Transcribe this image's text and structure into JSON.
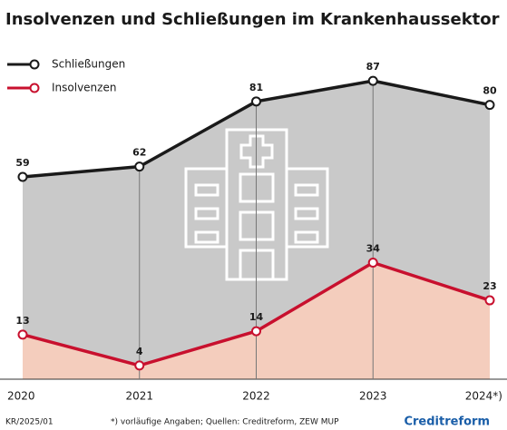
{
  "chart_data": {
    "type": "line",
    "title": "Insolvenzen und Schließungen im Krankenhaussektor",
    "categories": [
      "2020",
      "2021",
      "2022",
      "2023",
      "2024*)"
    ],
    "series": [
      {
        "name": "Schließungen",
        "color": "#1a1a1a",
        "area_color": "#c9c9c9",
        "values": [
          59,
          62,
          81,
          87,
          80
        ]
      },
      {
        "name": "Insolvenzen",
        "color": "#c8102e",
        "area_color": "#f4cdbd",
        "values": [
          13,
          4,
          14,
          34,
          23
        ]
      }
    ],
    "ylim": [
      0,
      100
    ],
    "source_id": "KR/2025/01",
    "footnote": "*) vorläufige Angaben; Quellen: Creditreform, ZEW MUP",
    "brand": "Creditreform"
  }
}
